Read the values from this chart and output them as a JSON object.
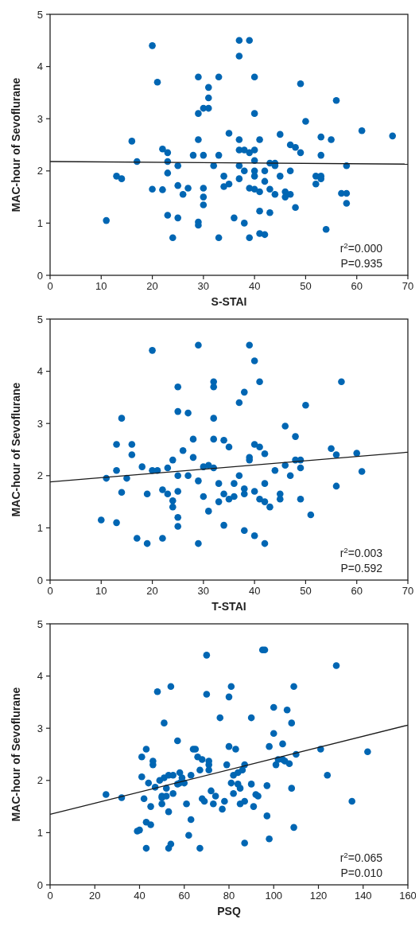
{
  "chart_data": [
    {
      "type": "scatter",
      "xlabel": "S-STAI",
      "ylabel": "MAC-hour of Sevoflurane",
      "xlim": [
        0,
        70
      ],
      "ylim": [
        0,
        5
      ],
      "xticks": [
        0,
        10,
        20,
        30,
        40,
        50,
        60,
        70
      ],
      "yticks": [
        0,
        1,
        2,
        3,
        4,
        5
      ],
      "annotations": [
        "r$^{2}$=0.000",
        "P=0.935"
      ],
      "series": [
        {
          "marker": "circle",
          "color": "#0066b3",
          "x": [
            11,
            13,
            14,
            16,
            17,
            20,
            20,
            21,
            22,
            22,
            23,
            23,
            23,
            23,
            24,
            25,
            25,
            25,
            26,
            27,
            28,
            29,
            29,
            29,
            29,
            29,
            30,
            30,
            30,
            30,
            30,
            31,
            31,
            31,
            32,
            33,
            33,
            33,
            34,
            34,
            35,
            35,
            36,
            37,
            37,
            37,
            37,
            37,
            37,
            38,
            38,
            38,
            39,
            39,
            39,
            39,
            40,
            40,
            40,
            40,
            40,
            40,
            40,
            41,
            41,
            41,
            41,
            42,
            42,
            42,
            43,
            43,
            43,
            44,
            44,
            44,
            45,
            45,
            46,
            46,
            47,
            47,
            47,
            48,
            48,
            49,
            49,
            50,
            52,
            52,
            53,
            53,
            53,
            53,
            54,
            55,
            56,
            57,
            58,
            58,
            58,
            61,
            67
          ],
          "values": [
            1.05,
            1.9,
            1.85,
            2.57,
            2.18,
            4.4,
            1.65,
            3.7,
            2.42,
            1.64,
            2.35,
            2.18,
            1.96,
            1.15,
            0.72,
            2.1,
            1.72,
            1.1,
            1.55,
            1.67,
            2.3,
            3.8,
            3.1,
            2.6,
            1.02,
            0.96,
            3.2,
            2.3,
            1.67,
            1.5,
            1.35,
            3.6,
            3.4,
            3.2,
            2.1,
            3.8,
            2.3,
            0.72,
            1.9,
            1.7,
            2.72,
            1.75,
            1.1,
            4.5,
            4.2,
            2.6,
            2.4,
            2.1,
            1.85,
            2.4,
            2.0,
            1.0,
            4.5,
            2.35,
            1.67,
            0.72,
            3.8,
            3.1,
            2.4,
            2.2,
            2.0,
            1.9,
            1.65,
            2.6,
            1.6,
            1.23,
            0.8,
            2.0,
            1.8,
            0.78,
            2.15,
            1.65,
            1.2,
            2.15,
            2.1,
            1.55,
            2.7,
            1.9,
            1.6,
            1.5,
            2.5,
            2.0,
            1.55,
            2.45,
            1.3,
            3.67,
            2.35,
            2.95,
            1.9,
            1.75,
            2.65,
            2.3,
            1.85,
            1.9,
            0.88,
            2.6,
            3.35,
            1.57,
            2.1,
            1.57,
            1.38,
            2.77,
            2.67
          ]
        },
        {
          "type": "line",
          "marker": "none",
          "color": "#1a1a1a",
          "x": [
            0,
            70
          ],
          "values": [
            2.18,
            2.13
          ]
        }
      ]
    },
    {
      "type": "scatter",
      "xlabel": "T-STAI",
      "ylabel": "MAC-hour of Sevoflurane",
      "xlim": [
        0,
        70
      ],
      "ylim": [
        0,
        5
      ],
      "xticks": [
        0,
        10,
        20,
        30,
        40,
        50,
        60,
        70
      ],
      "yticks": [
        0,
        1,
        2,
        3,
        4,
        5
      ],
      "annotations": [
        "r$^{2}$=0.003",
        "P=0.592"
      ],
      "series": [
        {
          "marker": "circle",
          "color": "#0066b3",
          "x": [
            10,
            11,
            13,
            13,
            13,
            14,
            14,
            15,
            16,
            16,
            17,
            18,
            19,
            19,
            20,
            20,
            21,
            22,
            22,
            23,
            23,
            24,
            24,
            24,
            25,
            25,
            25,
            25,
            25,
            25,
            26,
            27,
            27,
            28,
            28,
            29,
            29,
            29,
            30,
            30,
            31,
            31,
            32,
            32,
            32,
            32,
            32,
            33,
            33,
            34,
            34,
            34,
            35,
            35,
            36,
            36,
            37,
            37,
            38,
            38,
            38,
            38,
            39,
            39,
            39,
            40,
            40,
            40,
            40,
            41,
            41,
            41,
            42,
            42,
            42,
            42,
            43,
            44,
            45,
            45,
            46,
            46,
            47,
            48,
            48,
            49,
            49,
            49,
            50,
            51,
            55,
            56,
            56,
            57,
            60,
            61
          ],
          "values": [
            1.15,
            1.95,
            2.6,
            2.1,
            1.1,
            3.1,
            1.68,
            1.95,
            2.6,
            2.4,
            0.8,
            2.17,
            1.65,
            0.7,
            4.4,
            2.1,
            2.1,
            1.73,
            0.8,
            2.15,
            1.65,
            2.3,
            1.52,
            1.4,
            3.7,
            3.23,
            2.0,
            1.7,
            1.2,
            1.03,
            2.48,
            3.2,
            2.0,
            2.7,
            2.35,
            4.5,
            1.9,
            0.7,
            2.17,
            1.6,
            2.2,
            1.32,
            3.8,
            3.7,
            3.1,
            2.7,
            2.15,
            1.85,
            1.5,
            2.68,
            1.65,
            1.05,
            2.55,
            1.55,
            1.6,
            1.85,
            3.4,
            2.0,
            3.6,
            1.75,
            1.65,
            0.95,
            4.5,
            2.3,
            2.35,
            4.2,
            2.6,
            1.7,
            0.85,
            3.8,
            2.55,
            1.55,
            2.42,
            1.85,
            1.5,
            0.7,
            1.4,
            2.1,
            1.55,
            1.65,
            2.95,
            2.2,
            2.0,
            2.75,
            2.3,
            2.3,
            2.15,
            1.55,
            3.35,
            1.25,
            2.52,
            2.4,
            1.8,
            3.8,
            2.43,
            2.08
          ]
        },
        {
          "type": "line",
          "marker": "none",
          "color": "#1a1a1a",
          "x": [
            0,
            70
          ],
          "values": [
            1.88,
            2.45
          ]
        }
      ]
    },
    {
      "type": "scatter",
      "xlabel": "PSQ",
      "ylabel": "MAC-hour of Sevoflurane",
      "xlim": [
        0,
        160
      ],
      "ylim": [
        0,
        5
      ],
      "xticks": [
        0,
        20,
        40,
        60,
        80,
        100,
        120,
        140,
        160
      ],
      "yticks": [
        0,
        1,
        2,
        3,
        4,
        5
      ],
      "annotations": [
        "r$^{2}$=0.065",
        "P=0.010"
      ],
      "series": [
        {
          "marker": "circle",
          "color": "#0066b3",
          "x": [
            25,
            32,
            39,
            40,
            41,
            41,
            42,
            43,
            43,
            43,
            44,
            45,
            45,
            46,
            46,
            47,
            48,
            49,
            50,
            50,
            50,
            51,
            51,
            52,
            52,
            53,
            53,
            53,
            54,
            54,
            55,
            55,
            57,
            57,
            58,
            58,
            59,
            60,
            61,
            62,
            63,
            63,
            64,
            65,
            66,
            67,
            67,
            68,
            68,
            69,
            70,
            70,
            71,
            71,
            71,
            72,
            73,
            74,
            76,
            77,
            78,
            79,
            80,
            80,
            81,
            81,
            82,
            82,
            83,
            84,
            84,
            85,
            85,
            86,
            87,
            87,
            87,
            90,
            90,
            91,
            92,
            93,
            95,
            96,
            97,
            97,
            98,
            98,
            100,
            100,
            101,
            102,
            104,
            104,
            105,
            106,
            107,
            108,
            108,
            109,
            109,
            110,
            121,
            124,
            128,
            135,
            142
          ],
          "values": [
            1.73,
            1.67,
            1.03,
            1.05,
            2.45,
            2.07,
            1.65,
            2.6,
            0.7,
            1.2,
            1.95,
            1.15,
            1.5,
            2.3,
            2.37,
            1.87,
            3.7,
            2.0,
            1.7,
            1.67,
            1.55,
            3.1,
            2.05,
            1.85,
            1.7,
            0.7,
            2.1,
            1.4,
            3.8,
            0.78,
            2.1,
            1.75,
            1.93,
            2.76,
            2.15,
            1.95,
            2.05,
            1.95,
            1.55,
            0.95,
            2.1,
            1.25,
            2.6,
            2.6,
            2.45,
            0.7,
            2.2,
            2.4,
            1.65,
            1.6,
            3.65,
            4.4,
            2.3,
            2.2,
            2.37,
            1.8,
            1.55,
            1.7,
            3.2,
            1.45,
            1.6,
            2.3,
            3.6,
            2.65,
            1.95,
            3.8,
            2.1,
            1.75,
            2.6,
            2.15,
            1.93,
            1.85,
            1.55,
            2.2,
            2.3,
            1.6,
            0.8,
            3.2,
            1.93,
            1.5,
            1.73,
            1.7,
            4.5,
            4.5,
            1.32,
            1.9,
            2.65,
            0.88,
            3.4,
            2.9,
            2.3,
            2.4,
            2.7,
            2.4,
            2.37,
            3.35,
            2.32,
            1.85,
            3.1,
            1.1,
            3.8,
            2.5,
            2.6,
            2.1,
            4.2,
            1.6,
            2.55
          ]
        },
        {
          "type": "line",
          "marker": "none",
          "color": "#1a1a1a",
          "x": [
            0,
            160
          ],
          "values": [
            1.35,
            3.06
          ]
        }
      ]
    }
  ]
}
